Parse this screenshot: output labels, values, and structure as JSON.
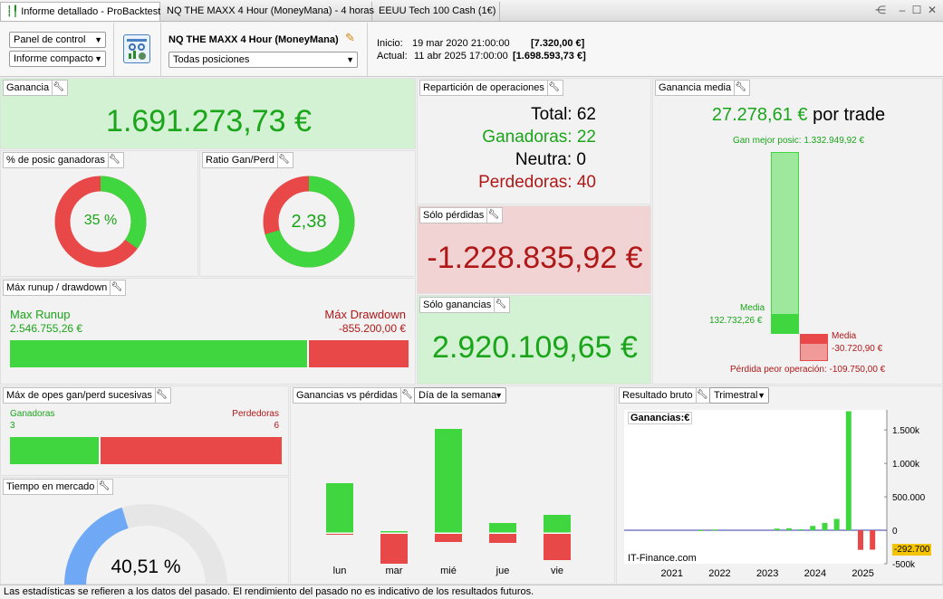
{
  "tabs": [
    "Informe detallado - ProBacktest",
    "NQ THE MAXX 4 Hour (MoneyMana) - 4 horas",
    "EEUU Tech 100 Cash (1€)"
  ],
  "header": {
    "panel_select": "Panel de control",
    "report_select": "Informe compacto",
    "strategy_name": "NQ THE MAXX 4 Hour (MoneyMana)",
    "positions_select": "Todas posiciones",
    "start_label": "Inicio:",
    "start_date": "19 mar 2020 21:00:00",
    "start_value": "[7.320,00 €]",
    "end_label": "Actual:",
    "end_date": "11 abr 2025 17:00:00",
    "end_value": "[1.698.593,73 €]"
  },
  "ganancia": {
    "title": "Ganancia",
    "value": "1.691.273,73 €"
  },
  "pct_ganadoras": {
    "title": "% de posic ganadoras",
    "label": "35 %",
    "fraction": 0.35
  },
  "ratio": {
    "title": "Ratio Gan/Perd",
    "label": "2,38",
    "fraction": 0.704
  },
  "reparticion": {
    "title": "Repartición de operaciones",
    "total": "Total: 62",
    "ganadoras": "Ganadoras: 22",
    "neutra": "Neutra: 0",
    "perdedoras": "Perdedoras: 40"
  },
  "solo_perdidas": {
    "title": "Sólo pérdidas",
    "value": "-1.228.835,92 €"
  },
  "solo_ganancias": {
    "title": "Sólo ganancias",
    "value": "2.920.109,65 €"
  },
  "ganancia_media": {
    "title": "Ganancia media",
    "value": "27.278,61 €",
    "suffix": "por trade",
    "best_label": "Gan mejor posic: 1.332.949,92 €",
    "media_win_label": "Media",
    "media_win_value": "132.732,26 €",
    "media_loss_label": "Media",
    "media_loss_value": "-30.720,90 €",
    "worst_label": "Pérdida peor operación: -109.750,00 €"
  },
  "runup": {
    "title": "Máx runup / drawdown",
    "runup_label": "Max Runup",
    "runup_value": "2.546.755,26 €",
    "drawdown_label": "Máx Drawdown",
    "drawdown_value": "-855.200,00 €",
    "runup_fraction": 0.749
  },
  "sucesivas": {
    "title": "Máx de opes gan/perd sucesivas",
    "win_label": "Ganadoras",
    "win_value": "3",
    "loss_label": "Perdedoras",
    "loss_value": "6",
    "win_fraction": 0.333
  },
  "tiempo": {
    "title": "Tiempo en mercado",
    "label": "40,51 %",
    "fraction": 0.4051
  },
  "gvp": {
    "title": "Ganancias vs pérdidas",
    "select": "Día de la semana"
  },
  "resultado": {
    "title": "Resultado bruto",
    "select": "Trimestral",
    "chart_title": "Ganancias:€",
    "watermark": "IT-Finance.com",
    "last_value": "-292.700"
  },
  "footer": "Las estadísticas se refieren a los datos del pasado. El rendimiento del pasado no es indicativo de los resultados futuros.",
  "colors": {
    "green": "#1aa51a",
    "red": "#b01818",
    "bar_green": "#3fd63f",
    "bar_red": "#e84848",
    "blue": "#6fa8f5"
  },
  "chart_data": [
    {
      "type": "bar",
      "title": "Ganancias vs pérdidas",
      "categories": [
        "lun",
        "mar",
        "mié",
        "jue",
        "vie"
      ],
      "series": [
        {
          "name": "Ganancias",
          "values": [
            55,
            2,
            115,
            11,
            20
          ]
        },
        {
          "name": "Pérdidas",
          "values": [
            -1,
            -33,
            -9,
            -10,
            -29
          ]
        }
      ]
    },
    {
      "type": "bar",
      "title": "Ganancias:€",
      "xlabel": "",
      "ylabel": "",
      "x_ticks": [
        "2021",
        "2022",
        "2023",
        "2024",
        "2025"
      ],
      "y_ticks": [
        "1.500k",
        "1.000k",
        "500.000",
        "0",
        "-500k"
      ],
      "ylim": [
        -500000,
        1800000
      ],
      "x": [
        2021.6,
        2021.9,
        2023.2,
        2023.45,
        2023.7,
        2023.95,
        2024.2,
        2024.45,
        2024.7,
        2024.95
      ],
      "values": [
        2000,
        12000,
        25000,
        30000,
        15000,
        65000,
        110000,
        170000,
        1780000,
        -292700
      ],
      "extra_neg": {
        "x": 2025.2,
        "value": -290000
      }
    }
  ]
}
